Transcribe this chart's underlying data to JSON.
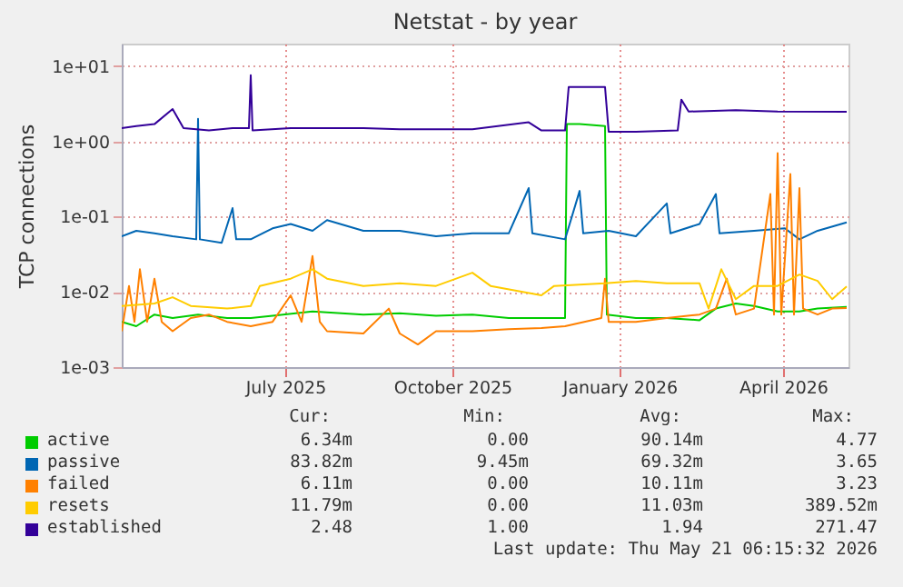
{
  "chart_data": {
    "type": "line",
    "title": "Netstat - by year",
    "ylabel": "TCP connections",
    "log": "y",
    "grid": true,
    "legend": "bottom",
    "line_style": "solid",
    "xlim": [
      "2025-04-16",
      "2026-05-21"
    ],
    "xticks": [
      {
        "value": "2025-07-15",
        "label": "July 2025"
      },
      {
        "value": "2025-10-15",
        "label": "October 2025"
      },
      {
        "value": "2026-01-15",
        "label": "January 2026"
      },
      {
        "value": "2026-04-15",
        "label": "April 2026"
      }
    ],
    "ylim": [
      0.001,
      20
    ],
    "yticks": [
      {
        "value": 0.001,
        "label": "1e-03"
      },
      {
        "value": 0.01,
        "label": "1e-02"
      },
      {
        "value": 0.1,
        "label": "1e-01"
      },
      {
        "value": 1,
        "label": "1e+00"
      },
      {
        "value": 10,
        "label": "1e+01"
      }
    ],
    "series": [
      {
        "name": "active",
        "color": "#00cc00",
        "x": [
          "2025-04-16",
          "2025-04-24",
          "2025-05-04",
          "2025-05-14",
          "2025-05-28",
          "2025-06-13",
          "2025-06-26",
          "2025-07-08",
          "2025-07-30",
          "2025-08-27",
          "2025-09-16",
          "2025-10-06",
          "2025-10-26",
          "2025-11-15",
          "2025-12-03",
          "2025-12-16",
          "2025-12-17",
          "2025-12-24",
          "2026-01-07",
          "2026-01-08",
          "2026-01-24",
          "2026-02-10",
          "2026-02-28",
          "2026-03-09",
          "2026-03-20",
          "2026-03-30",
          "2026-04-12",
          "2026-04-24",
          "2026-05-04",
          "2026-05-20"
        ],
        "values": [
          0.004,
          0.0035,
          0.005,
          0.0045,
          0.005,
          0.0045,
          0.0045,
          0.0048,
          0.0055,
          0.005,
          0.0052,
          0.0048,
          0.005,
          0.0045,
          0.0045,
          0.0045,
          1.7,
          1.7,
          1.6,
          0.005,
          0.0045,
          0.0045,
          0.0042,
          0.006,
          0.007,
          0.0065,
          0.0055,
          0.0055,
          0.006,
          0.0063
        ]
      },
      {
        "name": "passive",
        "color": "#0066b3",
        "x": [
          "2025-04-16",
          "2025-04-24",
          "2025-05-04",
          "2025-05-14",
          "2025-05-27",
          "2025-05-28",
          "2025-05-29",
          "2025-06-10",
          "2025-06-16",
          "2025-06-18",
          "2025-06-26",
          "2025-07-08",
          "2025-07-18",
          "2025-07-30",
          "2025-08-07",
          "2025-08-27",
          "2025-09-16",
          "2025-10-06",
          "2025-10-26",
          "2025-11-15",
          "2025-11-26",
          "2025-11-28",
          "2025-12-16",
          "2025-12-24",
          "2025-12-26",
          "2026-01-09",
          "2026-01-24",
          "2026-02-10",
          "2026-02-12",
          "2026-02-28",
          "2026-03-09",
          "2026-03-11",
          "2026-03-30",
          "2026-04-16",
          "2026-04-24",
          "2026-05-04",
          "2026-05-20"
        ],
        "values": [
          0.055,
          0.065,
          0.06,
          0.055,
          0.05,
          2.0,
          0.05,
          0.045,
          0.13,
          0.05,
          0.05,
          0.07,
          0.08,
          0.065,
          0.09,
          0.065,
          0.065,
          0.055,
          0.06,
          0.06,
          0.24,
          0.06,
          0.05,
          0.22,
          0.06,
          0.065,
          0.055,
          0.15,
          0.06,
          0.08,
          0.2,
          0.06,
          0.065,
          0.07,
          0.05,
          0.065,
          0.084
        ]
      },
      {
        "name": "failed",
        "color": "#ff8000",
        "x": [
          "2025-04-16",
          "2025-04-20",
          "2025-04-23",
          "2025-04-26",
          "2025-04-30",
          "2025-05-04",
          "2025-05-08",
          "2025-05-14",
          "2025-05-24",
          "2025-06-03",
          "2025-06-13",
          "2025-06-26",
          "2025-07-08",
          "2025-07-18",
          "2025-07-24",
          "2025-07-30",
          "2025-08-03",
          "2025-08-07",
          "2025-08-27",
          "2025-09-10",
          "2025-09-16",
          "2025-09-26",
          "2025-10-06",
          "2025-10-26",
          "2025-11-15",
          "2025-12-03",
          "2025-12-16",
          "2026-01-05",
          "2026-01-07",
          "2026-01-09",
          "2026-01-24",
          "2026-02-10",
          "2026-02-28",
          "2026-03-09",
          "2026-03-15",
          "2026-03-20",
          "2026-03-30",
          "2026-04-08",
          "2026-04-10",
          "2026-04-12",
          "2026-04-14",
          "2026-04-19",
          "2026-04-21",
          "2026-04-24",
          "2026-04-26",
          "2026-05-04",
          "2026-05-12",
          "2026-05-20"
        ],
        "values": [
          0.003,
          0.012,
          0.004,
          0.02,
          0.004,
          0.015,
          0.004,
          0.003,
          0.0045,
          0.005,
          0.004,
          0.0035,
          0.004,
          0.009,
          0.004,
          0.03,
          0.004,
          0.003,
          0.0028,
          0.006,
          0.0028,
          0.002,
          0.003,
          0.003,
          0.0032,
          0.0033,
          0.0035,
          0.0045,
          0.015,
          0.004,
          0.004,
          0.0045,
          0.005,
          0.006,
          0.015,
          0.005,
          0.006,
          0.2,
          0.005,
          0.7,
          0.005,
          0.37,
          0.005,
          0.24,
          0.006,
          0.005,
          0.006,
          0.0061
        ]
      },
      {
        "name": "resets",
        "color": "#ffcc00",
        "x": [
          "2025-04-16",
          "2025-05-04",
          "2025-05-14",
          "2025-05-24",
          "2025-06-13",
          "2025-06-26",
          "2025-07-01",
          "2025-07-18",
          "2025-07-30",
          "2025-08-07",
          "2025-08-27",
          "2025-09-16",
          "2025-10-06",
          "2025-10-26",
          "2025-11-05",
          "2025-12-03",
          "2025-12-10",
          "2026-01-07",
          "2026-01-24",
          "2026-02-10",
          "2026-02-28",
          "2026-03-05",
          "2026-03-12",
          "2026-03-20",
          "2026-03-30",
          "2026-04-12",
          "2026-04-24",
          "2026-05-04",
          "2026-05-12",
          "2026-05-20"
        ],
        "values": [
          0.0065,
          0.007,
          0.0085,
          0.0065,
          0.006,
          0.0065,
          0.012,
          0.015,
          0.02,
          0.015,
          0.012,
          0.013,
          0.012,
          0.018,
          0.012,
          0.009,
          0.012,
          0.013,
          0.014,
          0.013,
          0.013,
          0.006,
          0.02,
          0.008,
          0.012,
          0.012,
          0.017,
          0.014,
          0.008,
          0.0118
        ]
      },
      {
        "name": "established",
        "color": "#330099",
        "x": [
          "2025-04-16",
          "2025-04-24",
          "2025-05-04",
          "2025-05-14",
          "2025-05-20",
          "2025-06-03",
          "2025-06-16",
          "2025-06-25",
          "2025-06-26",
          "2025-06-27",
          "2025-07-18",
          "2025-08-27",
          "2025-09-16",
          "2025-10-26",
          "2025-11-26",
          "2025-12-03",
          "2025-12-16",
          "2025-12-18",
          "2026-01-07",
          "2026-01-09",
          "2026-01-24",
          "2026-02-16",
          "2026-02-18",
          "2026-02-22",
          "2026-03-20",
          "2026-04-12",
          "2026-05-20"
        ],
        "values": [
          1.5,
          1.6,
          1.7,
          2.7,
          1.5,
          1.4,
          1.5,
          1.5,
          7.6,
          1.4,
          1.5,
          1.5,
          1.45,
          1.45,
          1.8,
          1.4,
          1.4,
          5.3,
          5.3,
          1.35,
          1.35,
          1.4,
          3.6,
          2.5,
          2.6,
          2.5,
          2.48
        ]
      }
    ],
    "annotations": [
      "Cur:",
      "Min:",
      "Avg:",
      "Max:",
      "6.34m",
      "0.00",
      "90.14m",
      "4.77",
      "83.82m",
      "9.45m",
      "69.32m",
      "3.65",
      "6.11m",
      "0.00",
      "10.11m",
      "3.23",
      "11.79m",
      "0.00",
      "11.03m",
      "389.52m",
      "2.48",
      "1.00",
      "1.94",
      "271.47",
      "Last update: Thu May 21 06:15:32 2026"
    ]
  }
}
